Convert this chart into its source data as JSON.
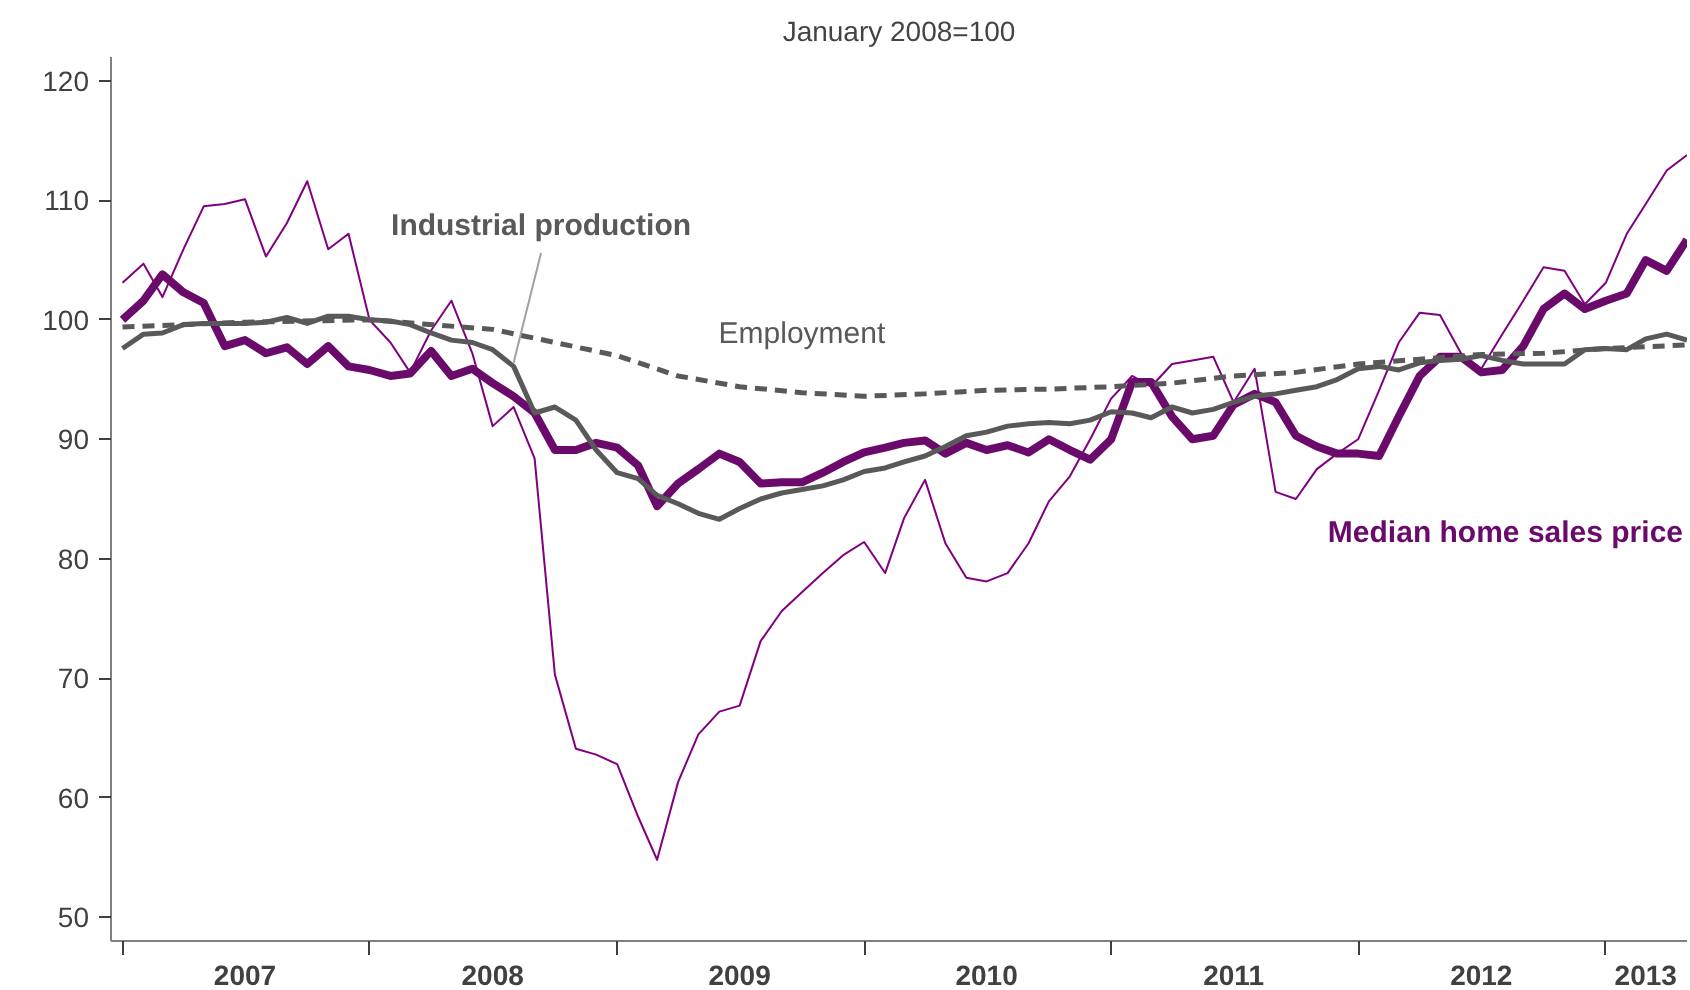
{
  "chart_data": {
    "type": "line",
    "title": "January 2008=100",
    "x": [
      "2007-01",
      "2007-02",
      "2007-03",
      "2007-04",
      "2007-05",
      "2007-06",
      "2007-07",
      "2007-08",
      "2007-09",
      "2007-10",
      "2007-11",
      "2007-12",
      "2008-01",
      "2008-02",
      "2008-03",
      "2008-04",
      "2008-05",
      "2008-06",
      "2008-07",
      "2008-08",
      "2008-09",
      "2008-10",
      "2008-11",
      "2008-12",
      "2009-01",
      "2009-02",
      "2009-03",
      "2009-04",
      "2009-05",
      "2009-06",
      "2009-07",
      "2009-08",
      "2009-09",
      "2009-10",
      "2009-11",
      "2009-12",
      "2010-01",
      "2010-02",
      "2010-03",
      "2010-04",
      "2010-05",
      "2010-06",
      "2010-07",
      "2010-08",
      "2010-09",
      "2010-10",
      "2010-11",
      "2010-12",
      "2011-01",
      "2011-02",
      "2011-03",
      "2011-04",
      "2011-05",
      "2011-06",
      "2011-07",
      "2011-08",
      "2011-09",
      "2011-10",
      "2011-11",
      "2011-12",
      "2012-01",
      "2012-02",
      "2012-03",
      "2012-04",
      "2012-05",
      "2012-06",
      "2012-07",
      "2012-08",
      "2012-09",
      "2012-10",
      "2012-11",
      "2012-12",
      "2013-01",
      "2013-02",
      "2013-03",
      "2013-04",
      "2013-05"
    ],
    "series": [
      {
        "color": "#800080",
        "values": [
          103.1,
          104.7,
          101.9,
          105.9,
          109.5,
          109.7,
          110.1,
          105.3,
          108.1,
          111.6,
          105.9,
          107.2,
          100,
          98.1,
          95.6,
          99.1,
          101.6,
          97.2,
          91.1,
          92.7,
          88.4,
          70.3,
          64.1,
          63.6,
          62.8,
          58.4,
          54.8,
          61.3,
          65.3,
          67.2,
          67.7,
          73.1,
          75.6,
          77.2,
          78.8,
          80.3,
          81.4,
          78.8,
          83.4,
          86.6,
          81.3,
          78.4,
          78.1,
          78.8,
          81.3,
          84.8,
          86.9,
          90,
          93.4,
          95.3,
          94.4,
          96.3,
          96.6,
          96.9,
          93.1,
          95.9,
          85.6,
          85,
          87.5,
          88.8,
          90,
          94.1,
          98.1,
          100.6,
          100.4,
          97.2,
          95.9,
          98.8,
          101.6,
          104.4,
          104.1,
          101.3,
          103.1,
          107.2,
          109.7,
          112.5,
          113.8
        ]
      },
      {
        "name": "Median home sales price",
        "color": "#6a0a6a",
        "values": [
          100,
          101.6,
          103.8,
          102.3,
          101.4,
          97.8,
          98.3,
          97.2,
          97.7,
          96.3,
          97.8,
          96.1,
          95.8,
          95.3,
          95.5,
          97.4,
          95.3,
          95.9,
          94.7,
          93.6,
          92.2,
          89.1,
          89.1,
          89.7,
          89.3,
          87.8,
          84.4,
          86.3,
          87.5,
          88.8,
          88.1,
          86.3,
          86.4,
          86.4,
          87.2,
          88.1,
          88.9,
          89.3,
          89.7,
          89.9,
          88.8,
          89.7,
          89.1,
          89.5,
          88.9,
          90,
          89.1,
          88.3,
          90,
          94.8,
          94.8,
          91.9,
          90,
          90.3,
          92.9,
          93.8,
          93.1,
          90.3,
          89.4,
          88.8,
          88.8,
          88.6,
          91.9,
          95.3,
          96.9,
          96.9,
          95.6,
          95.8,
          97.8,
          100.9,
          102.2,
          100.9,
          101.6,
          102.2,
          105,
          104.1,
          106.7
        ]
      },
      {
        "name": "Industrial production",
        "color": "#595959",
        "values": [
          97.6,
          98.8,
          98.9,
          99.6,
          99.7,
          99.7,
          99.7,
          99.8,
          100.2,
          99.7,
          100.3,
          100.3,
          100,
          99.9,
          99.6,
          98.9,
          98.3,
          98.1,
          97.5,
          96.1,
          92.2,
          92.7,
          91.6,
          89.1,
          87.2,
          86.7,
          85.3,
          84.6,
          83.8,
          83.3,
          84.2,
          85,
          85.5,
          85.8,
          86.1,
          86.6,
          87.3,
          87.6,
          88.1,
          88.6,
          89.4,
          90.3,
          90.6,
          91.1,
          91.3,
          91.4,
          91.3,
          91.6,
          92.3,
          92.2,
          91.8,
          92.7,
          92.2,
          92.5,
          93.1,
          93.6,
          93.8,
          94.1,
          94.4,
          95,
          95.9,
          96.1,
          95.8,
          96.4,
          96.6,
          96.7,
          97,
          96.6,
          96.3,
          96.3,
          96.3,
          97.5,
          97.6,
          97.5,
          98.4,
          98.8,
          98.3
        ]
      },
      {
        "name": "Employment",
        "color": "#595959",
        "line_style": "dashed",
        "x": [
          "2007-01",
          "2007-07",
          "2008-01",
          "2008-07",
          "2008-10",
          "2009-01",
          "2009-04",
          "2009-07",
          "2009-10",
          "2010-01",
          "2010-04",
          "2010-07",
          "2010-10",
          "2011-01",
          "2011-04",
          "2011-07",
          "2011-10",
          "2012-01",
          "2012-04",
          "2012-07",
          "2012-10",
          "2013-01",
          "2013-05"
        ],
        "values": [
          99.4,
          99.8,
          100,
          99.2,
          98.1,
          97,
          95.3,
          94.4,
          93.9,
          93.6,
          93.8,
          94.1,
          94.2,
          94.4,
          94.7,
          95.3,
          95.6,
          96.3,
          96.7,
          97.1,
          97.2,
          97.6,
          97.9
        ]
      }
    ],
    "xlim": [
      "2006-12-15",
      "2013-05-01"
    ],
    "xticks": [
      {
        "value": "2007-01-01",
        "label": null
      },
      {
        "value": "2007-07-01",
        "label": "2007"
      },
      {
        "value": "2008-01-01",
        "label": null
      },
      {
        "value": "2008-07-01",
        "label": "2008"
      },
      {
        "value": "2009-01-01",
        "label": null
      },
      {
        "value": "2009-07-01",
        "label": "2009"
      },
      {
        "value": "2010-01-01",
        "label": null
      },
      {
        "value": "2010-07-01",
        "label": "2010"
      },
      {
        "value": "2011-01-01",
        "label": null
      },
      {
        "value": "2011-07-01",
        "label": "2011"
      },
      {
        "value": "2012-01-01",
        "label": null
      },
      {
        "value": "2012-07-01",
        "label": "2012"
      },
      {
        "value": "2013-01-01",
        "label": null
      },
      {
        "value": "2013-03-01",
        "label": "2013"
      }
    ],
    "ylim": [
      48,
      122
    ],
    "yticks": [
      50,
      60,
      70,
      80,
      90,
      100,
      110,
      120
    ],
    "grid": false,
    "line_style": "solid",
    "marker": "none"
  }
}
